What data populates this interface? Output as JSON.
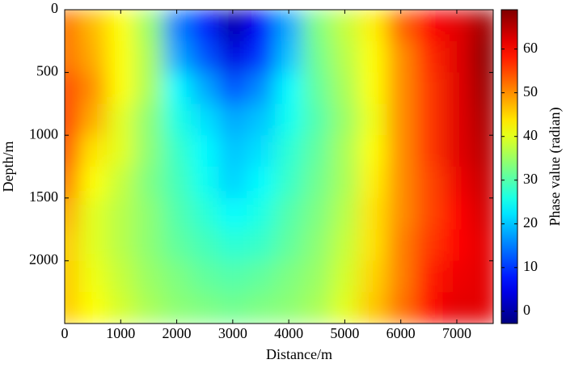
{
  "chart_data": {
    "type": "heatmap",
    "x_label": "Distance/m",
    "y_label": "Depth/m",
    "colorbar_label": "Phase value (radian)",
    "x": [
      0,
      500,
      1000,
      1500,
      2000,
      2500,
      3000,
      3500,
      4000,
      4500,
      5000,
      5500,
      6000,
      6500,
      7000,
      7500
    ],
    "y": [
      125,
      375,
      625,
      875,
      1125,
      1375,
      1625,
      1875,
      2125,
      2375
    ],
    "z": [
      [
        52,
        47,
        42,
        35,
        15,
        8,
        0,
        6,
        18,
        33,
        38,
        43,
        53,
        60,
        62,
        67
      ],
      [
        52,
        48,
        42,
        36,
        18,
        12,
        4,
        10,
        20,
        32,
        37,
        42,
        50,
        57,
        62,
        68
      ],
      [
        55,
        50,
        42,
        36,
        24,
        18,
        12,
        16,
        24,
        31,
        36,
        42,
        50,
        56,
        62,
        67
      ],
      [
        56,
        48,
        40,
        34,
        26,
        22,
        18,
        20,
        25,
        30,
        35,
        41,
        50,
        56,
        62,
        66
      ],
      [
        55,
        44,
        40,
        34,
        28,
        24,
        20,
        22,
        27,
        31,
        36,
        42,
        50,
        56,
        62,
        65
      ],
      [
        52,
        42,
        38,
        33,
        29,
        25,
        21,
        24,
        28,
        32,
        36,
        43,
        50,
        55,
        61,
        64
      ],
      [
        48,
        40,
        37,
        34,
        30,
        27,
        24,
        26,
        30,
        33,
        37,
        44,
        50,
        55,
        60,
        63
      ],
      [
        46,
        40,
        37,
        34,
        31,
        29,
        27,
        28,
        31,
        34,
        38,
        44,
        51,
        56,
        60,
        62
      ],
      [
        46,
        41,
        38,
        35,
        33,
        31,
        30,
        31,
        33,
        35,
        39,
        45,
        51,
        58,
        61,
        62
      ],
      [
        46,
        42,
        39,
        36,
        34,
        33,
        32,
        33,
        34,
        36,
        40,
        46,
        52,
        59,
        62,
        62
      ]
    ],
    "colormap": "jet",
    "xlim": [
      0,
      7650
    ],
    "xticks": [
      0,
      1000,
      2000,
      3000,
      4000,
      5000,
      6000,
      7000
    ],
    "ylim": [
      2500,
      0
    ],
    "yticks": [
      0,
      500,
      1000,
      1500,
      2000
    ],
    "clim": [
      -2.8,
      69
    ],
    "cticks": [
      0,
      10,
      20,
      30,
      40,
      50,
      60
    ]
  }
}
